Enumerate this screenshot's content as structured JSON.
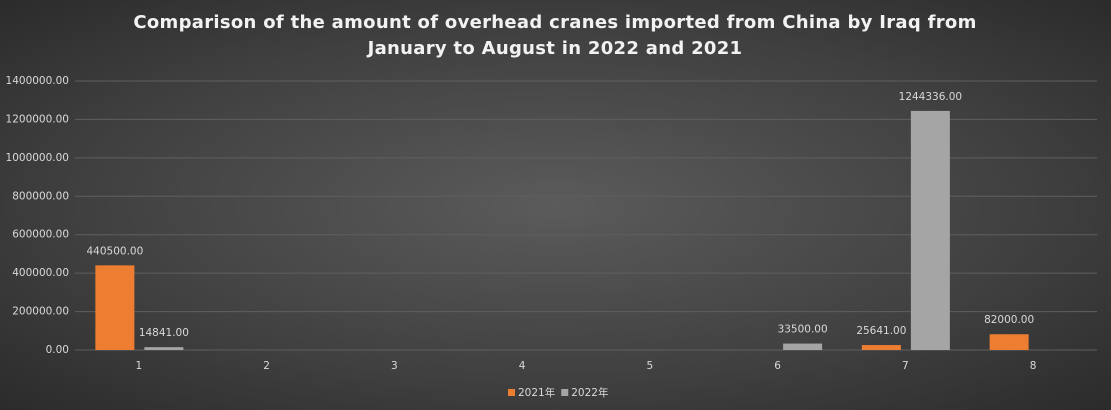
{
  "chart_data": {
    "type": "bar",
    "title": "Comparison of the amount of overhead cranes imported from China by Iraq from January to August in 2022 and 2021",
    "categories": [
      "1",
      "2",
      "3",
      "4",
      "5",
      "6",
      "7",
      "8"
    ],
    "series": [
      {
        "name": "2021年",
        "color": "#ed7d31",
        "values": [
          440500,
          null,
          null,
          null,
          null,
          null,
          25641,
          82000
        ],
        "value_labels": [
          "440500.00",
          null,
          null,
          null,
          null,
          null,
          "25641.00",
          "82000.00"
        ]
      },
      {
        "name": "2022年",
        "color": "#a5a5a5",
        "values": [
          14841,
          null,
          null,
          null,
          null,
          33500,
          1244336,
          null
        ],
        "value_labels": [
          "14841.00",
          null,
          null,
          null,
          null,
          "33500.00",
          "1244336.00",
          null
        ]
      }
    ],
    "ylim": [
      0,
      1400000
    ],
    "yticks": [
      {
        "value": 0,
        "label": "0.00"
      },
      {
        "value": 200000,
        "label": "200000.00"
      },
      {
        "value": 400000,
        "label": "400000.00"
      },
      {
        "value": 600000,
        "label": "600000.00"
      },
      {
        "value": 800000,
        "label": "800000.00"
      },
      {
        "value": 1000000,
        "label": "1000000.00"
      },
      {
        "value": 1200000,
        "label": "1200000.00"
      },
      {
        "value": 1400000,
        "label": "1400000.00"
      }
    ],
    "grid": true,
    "legend": "bottom"
  }
}
